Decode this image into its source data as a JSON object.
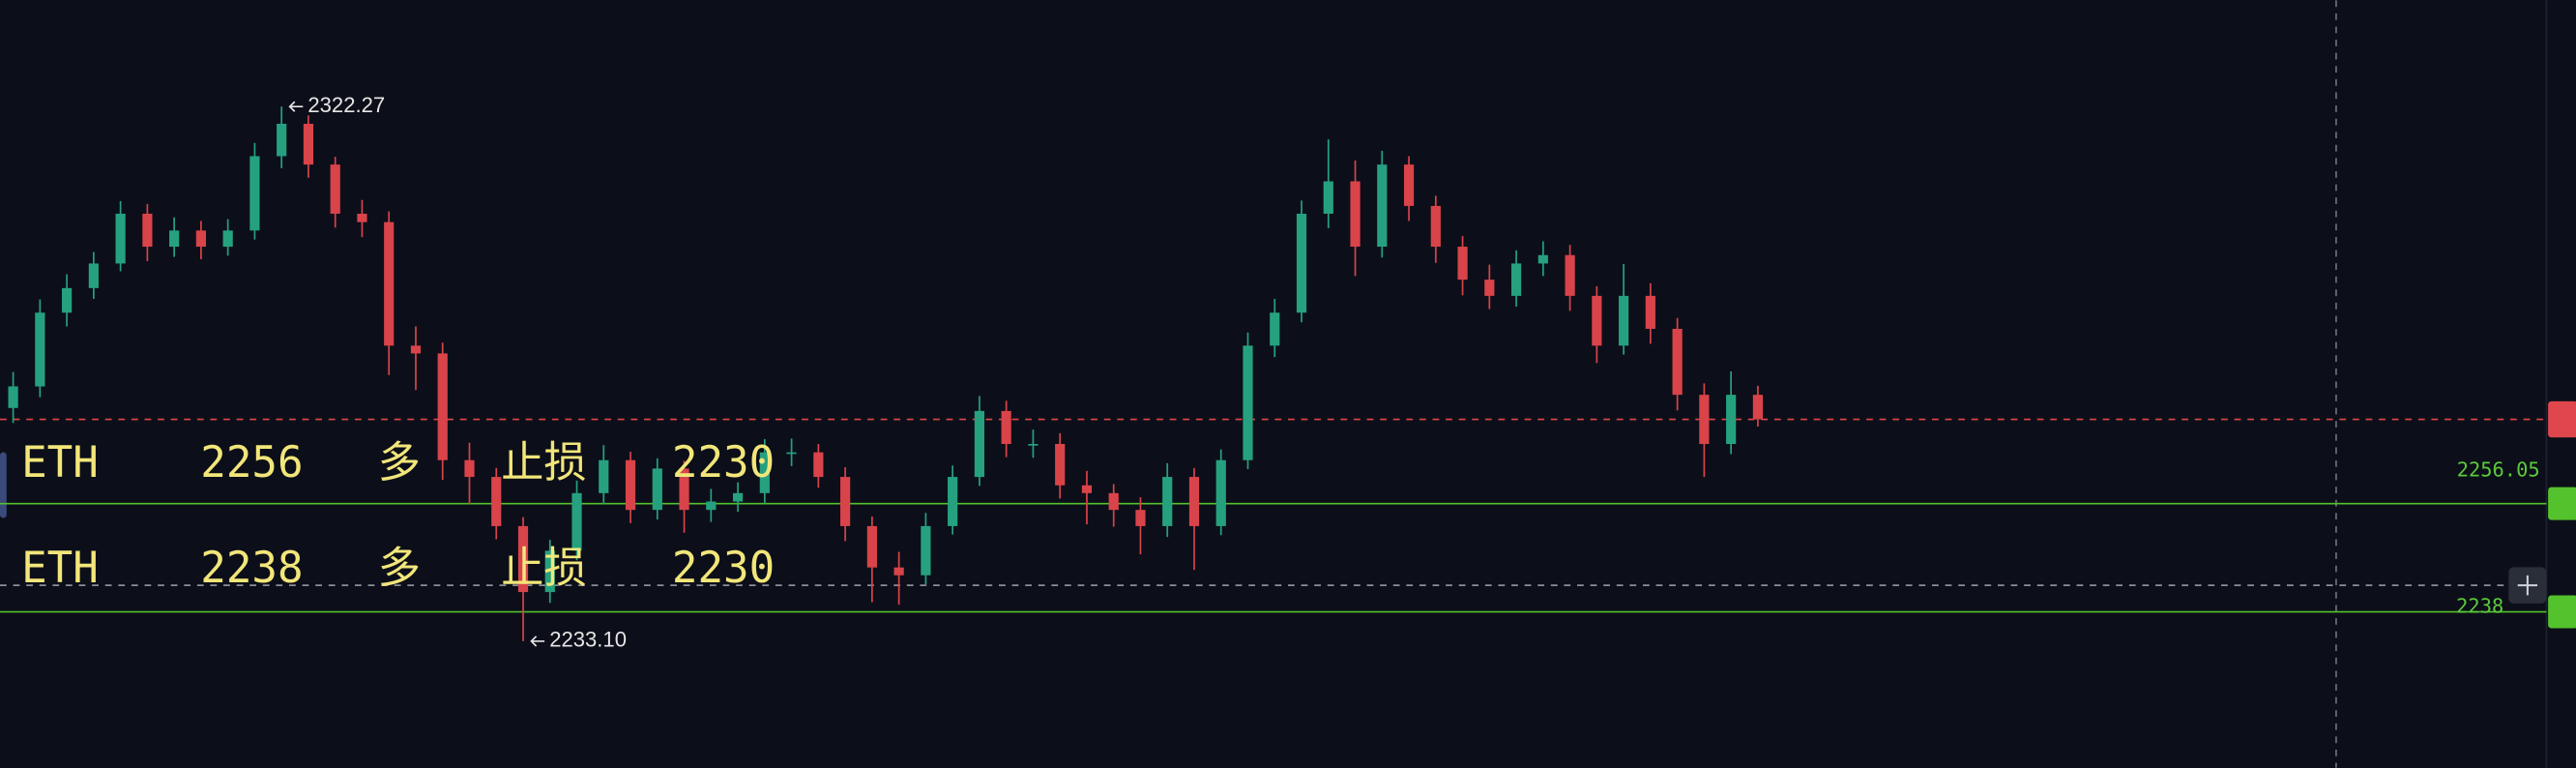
{
  "chart_data": {
    "type": "candlestick",
    "open": [
      2272.0,
      2275.6,
      2287.9,
      2292.0,
      2296.1,
      2304.4,
      2298.9,
      2301.6,
      2298.9,
      2301.6,
      2314.0,
      2319.4,
      2312.6,
      2304.4,
      2303.0,
      2282.4,
      2281.1,
      2263.3,
      2260.5,
      2252.3,
      2241.3,
      2248.2,
      2257.8,
      2263.3,
      2255.0,
      2261.9,
      2255.0,
      2256.4,
      2257.8,
      2264.6,
      2264.6,
      2260.5,
      2252.3,
      2245.4,
      2244.1,
      2252.3,
      2260.5,
      2271.5,
      2266.0,
      2266.0,
      2259.1,
      2257.8,
      2255.0,
      2252.3,
      2260.5,
      2252.3,
      2263.3,
      2282.4,
      2287.9,
      2304.4,
      2309.8,
      2298.9,
      2312.6,
      2305.7,
      2298.9,
      2293.4,
      2290.7,
      2296.1,
      2297.5,
      2290.7,
      2282.4,
      2290.7,
      2285.2,
      2274.2,
      2266.0,
      2274.2
    ],
    "high": [
      2278.0,
      2290.1,
      2294.3,
      2298.0,
      2306.5,
      2306.0,
      2303.8,
      2303.2,
      2303.5,
      2316.2,
      2322.27,
      2320.8,
      2313.9,
      2306.7,
      2304.8,
      2285.6,
      2282.9,
      2266.2,
      2262.0,
      2253.8,
      2250.0,
      2259.9,
      2265.8,
      2264.7,
      2263.6,
      2263.2,
      2258.5,
      2259.6,
      2266.8,
      2266.9,
      2266.0,
      2262.1,
      2253.9,
      2248.0,
      2254.5,
      2262.4,
      2274.0,
      2273.2,
      2268.4,
      2267.8,
      2261.5,
      2259.3,
      2257.1,
      2262.8,
      2262.0,
      2265.1,
      2284.6,
      2290.2,
      2306.6,
      2316.8,
      2313.3,
      2314.9,
      2314.0,
      2307.4,
      2300.7,
      2295.9,
      2298.3,
      2299.8,
      2299.2,
      2292.3,
      2296.0,
      2292.8,
      2287.0,
      2276.1,
      2278.1,
      2275.7
    ],
    "low": [
      2269.5,
      2273.8,
      2285.6,
      2290.2,
      2294.8,
      2296.5,
      2297.2,
      2296.8,
      2297.4,
      2300.1,
      2312.0,
      2310.4,
      2302.1,
      2300.5,
      2277.5,
      2275.0,
      2260.0,
      2256.0,
      2250.1,
      2233.1,
      2239.5,
      2246.6,
      2255.9,
      2252.8,
      2253.4,
      2251.2,
      2253.0,
      2254.7,
      2256.1,
      2262.3,
      2258.7,
      2249.8,
      2239.6,
      2239.2,
      2242.6,
      2250.9,
      2259.0,
      2263.8,
      2263.7,
      2256.9,
      2252.6,
      2252.2,
      2247.6,
      2250.5,
      2245.0,
      2250.8,
      2261.8,
      2280.5,
      2286.3,
      2302.0,
      2294.0,
      2297.1,
      2303.2,
      2296.2,
      2290.8,
      2288.5,
      2288.9,
      2294.0,
      2288.2,
      2279.5,
      2280.9,
      2282.7,
      2271.6,
      2260.5,
      2264.3,
      2268.9
    ],
    "close": [
      2275.6,
      2287.9,
      2292.0,
      2296.1,
      2304.4,
      2298.9,
      2301.6,
      2298.9,
      2301.6,
      2314.0,
      2319.4,
      2312.6,
      2304.4,
      2303.0,
      2282.4,
      2281.1,
      2263.3,
      2260.5,
      2252.3,
      2241.3,
      2248.2,
      2257.8,
      2263.3,
      2255.0,
      2261.9,
      2255.0,
      2256.4,
      2257.8,
      2264.6,
      2264.6,
      2260.5,
      2252.3,
      2245.4,
      2244.1,
      2252.3,
      2260.5,
      2271.5,
      2266.0,
      2266.0,
      2259.1,
      2257.8,
      2255.0,
      2252.3,
      2260.5,
      2252.3,
      2263.3,
      2282.4,
      2287.9,
      2304.4,
      2309.8,
      2298.9,
      2312.6,
      2305.7,
      2298.9,
      2293.4,
      2290.7,
      2296.1,
      2297.5,
      2290.7,
      2282.4,
      2290.7,
      2285.2,
      2274.2,
      2266.0,
      2274.2,
      2270.1
    ],
    "up_color": "#26a17f",
    "down_color": "#d9434a",
    "ylim": [
      2212,
      2340
    ],
    "annotations": {
      "high": "2322.27",
      "low": "2233.10"
    },
    "price_line": {
      "value": 2270.1,
      "color": "#e0474c"
    },
    "level_lines": [
      {
        "value": 2256.05,
        "color": "#54c22c"
      },
      {
        "value": 2238,
        "color": "#54c22c"
      }
    ],
    "notes": [
      [
        "ETH",
        "2256",
        "多",
        "止损",
        "2230"
      ],
      [
        "ETH",
        "2238",
        "多",
        "止损",
        "2230"
      ]
    ]
  }
}
